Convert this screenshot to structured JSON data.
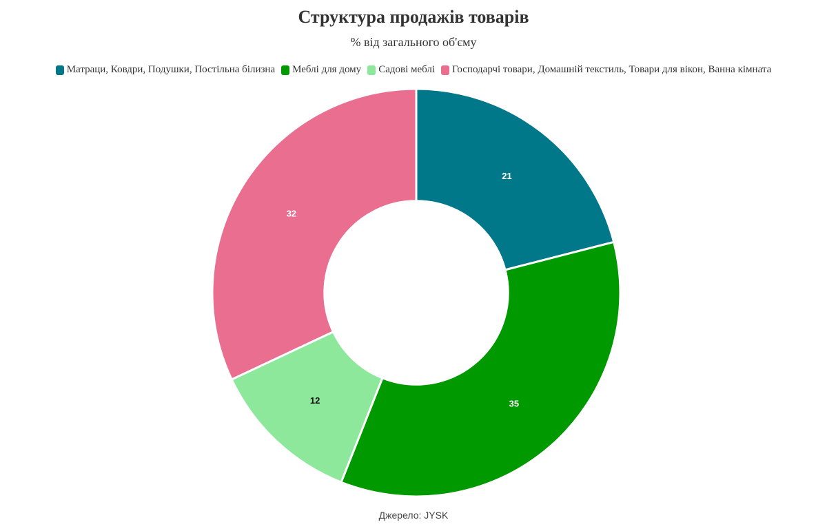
{
  "chart_data": {
    "type": "pie",
    "title": "Структура продажів товарів",
    "subtitle": "% від загального об'єму",
    "source": "Джерело: JYSK",
    "legend_position": "top",
    "hole": 0.45,
    "slices": [
      {
        "label": "Матраци, Ковдри, Подушки, Постільна білизна",
        "value": 21,
        "color": "#00788a",
        "text_color": "#ffffff"
      },
      {
        "label": "Меблі для дому",
        "value": 35,
        "color": "#009900",
        "text_color": "#ffffff"
      },
      {
        "label": "Садові меблі",
        "value": 12,
        "color": "#8ee89c",
        "text_color": "#111111"
      },
      {
        "label": "Господарчі товари, Домашній текстиль, Товари для вікон, Ванна кімната",
        "value": 32,
        "color": "#ea6e8f",
        "text_color": "#ffffff"
      }
    ]
  }
}
